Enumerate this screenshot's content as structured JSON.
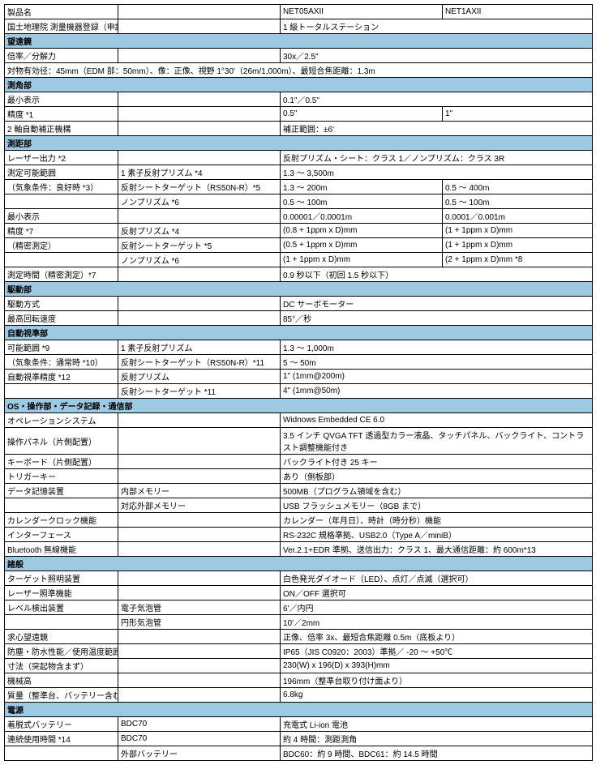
{
  "colors": {
    "header_bg": "#9ec9e2",
    "border": "#000000",
    "text": "#000000",
    "bg": "#ffffff"
  },
  "font_size": 10,
  "rows": [
    {
      "type": "r",
      "cells": [
        "製品名",
        "",
        "NET05AXII",
        "NET1AXII"
      ]
    },
    {
      "type": "r",
      "cells": [
        "国土地理院 測量機器登録（申請予定）",
        "",
        "1 級トータルステーション",
        ""
      ],
      "span": [
        1,
        1,
        2,
        0
      ]
    },
    {
      "type": "h",
      "label": "望遠鏡"
    },
    {
      "type": "r",
      "cells": [
        "倍率／分解力",
        "",
        "30x／2.5\"",
        ""
      ],
      "span": [
        1,
        1,
        2,
        0
      ]
    },
    {
      "type": "r",
      "cells": [
        "対物有効径：45mm（EDM 部：50mm）、像：正像、視野 1°30'（26m/1,000m）、最短合焦距離：1.3m",
        "",
        "",
        ""
      ],
      "span": [
        4,
        0,
        0,
        0
      ]
    },
    {
      "type": "h",
      "label": "測角部"
    },
    {
      "type": "r",
      "cells": [
        "最小表示",
        "",
        "0.1\"／0.5\"",
        ""
      ],
      "span": [
        1,
        1,
        2,
        0
      ]
    },
    {
      "type": "r",
      "cells": [
        "精度 *1",
        "",
        "0.5\"",
        "1\""
      ]
    },
    {
      "type": "r",
      "cells": [
        "2 軸自動補正機構",
        "",
        "補正範囲：±6'",
        ""
      ],
      "span": [
        1,
        1,
        2,
        0
      ]
    },
    {
      "type": "h",
      "label": "測距部"
    },
    {
      "type": "r",
      "cells": [
        "レーザー出力 *2",
        "",
        "反射プリズム・シート：クラス 1／ノンプリズム：クラス 3R",
        ""
      ],
      "span": [
        1,
        1,
        2,
        0
      ]
    },
    {
      "type": "r",
      "cells": [
        "測定可能範囲",
        "1 素子反射プリズム *4",
        "1.3 ～ 3,500m",
        ""
      ],
      "span": [
        1,
        1,
        2,
        0
      ]
    },
    {
      "type": "r",
      "cells": [
        "（気象条件：良好時 *3）",
        "反射シートターゲット（RS50N-R）*5",
        "1.3 ～ 200m",
        "0.5 ～ 400m"
      ]
    },
    {
      "type": "r",
      "cells": [
        "",
        "ノンプリズム *6",
        "0.5 ～ 100m",
        "0.5 ～ 100m"
      ]
    },
    {
      "type": "r",
      "cells": [
        "最小表示",
        "",
        "0.00001／0.0001m",
        "0.0001／0.001m"
      ]
    },
    {
      "type": "r",
      "cells": [
        "精度 *7",
        "反射プリズム *4",
        "(0.8 + 1ppm x D)mm",
        "(1 + 1ppm x D)mm"
      ]
    },
    {
      "type": "r",
      "cells": [
        "（精密測定）",
        "反射シートターゲット *5",
        "(0.5 + 1ppm x D)mm",
        "(1 + 1ppm x D)mm"
      ]
    },
    {
      "type": "r",
      "cells": [
        "",
        "ノンプリズム *6",
        "(1 + 1ppm x D)mm",
        "(2 + 1ppm x D)mm *8"
      ]
    },
    {
      "type": "r",
      "cells": [
        "測定時間（精密測定）*7",
        "",
        "0.9 秒以下（初回 1.5 秒以下）",
        ""
      ],
      "span": [
        1,
        1,
        2,
        0
      ]
    },
    {
      "type": "h",
      "label": "駆動部"
    },
    {
      "type": "r",
      "cells": [
        "駆動方式",
        "",
        "DC サーボモーター",
        ""
      ],
      "span": [
        1,
        1,
        2,
        0
      ]
    },
    {
      "type": "r",
      "cells": [
        "最高回転速度",
        "",
        "85°／秒",
        ""
      ],
      "span": [
        1,
        1,
        2,
        0
      ]
    },
    {
      "type": "h",
      "label": "自動視準部"
    },
    {
      "type": "r",
      "cells": [
        "可能範囲 *9",
        "1 素子反射プリズム",
        "1.3 ～ 1,000m",
        ""
      ],
      "span": [
        1,
        1,
        2,
        0
      ]
    },
    {
      "type": "r",
      "cells": [
        "（気象条件：通常時 *10）",
        "反射シートターゲット（RS50N-R）*11",
        "5 ～ 50m",
        ""
      ],
      "span": [
        1,
        1,
        2,
        0
      ]
    },
    {
      "type": "r",
      "cells": [
        "自動視準精度 *12",
        "反射プリズム",
        "1\" (1mm@200m)",
        ""
      ],
      "span": [
        1,
        1,
        2,
        0
      ]
    },
    {
      "type": "r",
      "cells": [
        "",
        "反射シートターゲット *11",
        "4\" (1mm@50m)",
        ""
      ],
      "span": [
        1,
        1,
        2,
        0
      ]
    },
    {
      "type": "h",
      "label": "OS・操作部・データ記録・通信部"
    },
    {
      "type": "r",
      "cells": [
        "オペレーションシステム",
        "",
        "Widnows Embedded CE 6.0",
        ""
      ],
      "span": [
        1,
        1,
        2,
        0
      ]
    },
    {
      "type": "r",
      "cells": [
        "操作パネル（片側配置）",
        "",
        "3.5 インチ QVGA TFT 透過型カラー液晶、タッチパネル、バックライト、コントラスト調整機能付き",
        ""
      ],
      "span": [
        1,
        1,
        2,
        0
      ],
      "tall": true
    },
    {
      "type": "r",
      "cells": [
        "キーボード（片側配置）",
        "",
        "バックライト付き 25 キー",
        ""
      ],
      "span": [
        1,
        1,
        2,
        0
      ]
    },
    {
      "type": "r",
      "cells": [
        "トリガーキー",
        "",
        "あり（側板部）",
        ""
      ],
      "span": [
        1,
        1,
        2,
        0
      ]
    },
    {
      "type": "r",
      "cells": [
        "データ記憶装置",
        "内部メモリー",
        "500MB（プログラム領域を含む）",
        ""
      ],
      "span": [
        1,
        1,
        2,
        0
      ]
    },
    {
      "type": "r",
      "cells": [
        "",
        "対応外部メモリー",
        "USB フラッシュメモリー（8GB まで）",
        ""
      ],
      "span": [
        1,
        1,
        2,
        0
      ]
    },
    {
      "type": "r",
      "cells": [
        "カレンダークロック機能",
        "",
        "カレンダー（年月日）、時計（時分秒）機能",
        ""
      ],
      "span": [
        1,
        1,
        2,
        0
      ]
    },
    {
      "type": "r",
      "cells": [
        "インターフェース",
        "",
        "RS-232C 規格準拠、USB2.0（Type A／miniB）",
        ""
      ],
      "span": [
        1,
        1,
        2,
        0
      ]
    },
    {
      "type": "r",
      "cells": [
        "Bluetooth 無線機能",
        "",
        "Ver.2.1+EDR 準拠、送信出力：クラス 1、最大通信距離：約 600m*13",
        ""
      ],
      "span": [
        1,
        1,
        2,
        0
      ]
    },
    {
      "type": "h",
      "label": "諸般"
    },
    {
      "type": "r",
      "cells": [
        "ターゲット照明装置",
        "",
        "白色発光ダイオード（LED）、点灯／点滅（選択可）",
        ""
      ],
      "span": [
        1,
        1,
        2,
        0
      ]
    },
    {
      "type": "r",
      "cells": [
        "レーザー照準機能",
        "",
        "ON／OFF 選択可",
        ""
      ],
      "span": [
        1,
        1,
        2,
        0
      ]
    },
    {
      "type": "r",
      "cells": [
        "レベル検出装置",
        "電子気泡管",
        "6'／内円",
        ""
      ],
      "span": [
        1,
        1,
        2,
        0
      ]
    },
    {
      "type": "r",
      "cells": [
        "",
        "円形気泡管",
        "10'／2mm",
        ""
      ],
      "span": [
        1,
        1,
        2,
        0
      ]
    },
    {
      "type": "r",
      "cells": [
        "求心望遠鏡",
        "",
        "正像、倍率 3x、最短合焦距離 0.5m（底板より）",
        ""
      ],
      "span": [
        1,
        1,
        2,
        0
      ]
    },
    {
      "type": "r",
      "cells": [
        "防塵・防水性能／使用温度範囲",
        "",
        "IP65（JIS C0920：2003）準拠／ -20 ～ +50℃",
        ""
      ],
      "span": [
        1,
        1,
        2,
        0
      ]
    },
    {
      "type": "r",
      "cells": [
        "寸法（突起物含まず）",
        "",
        "230(W) x 196(D) x 393(H)mm",
        ""
      ],
      "span": [
        1,
        1,
        2,
        0
      ]
    },
    {
      "type": "r",
      "cells": [
        "機械高",
        "",
        "196mm（整準台取り付け面より）",
        ""
      ],
      "span": [
        1,
        1,
        2,
        0
      ]
    },
    {
      "type": "r",
      "cells": [
        "質量（整準台、バッテリー含む）",
        "",
        "6.8kg",
        ""
      ],
      "span": [
        1,
        1,
        2,
        0
      ]
    },
    {
      "type": "h",
      "label": "電源"
    },
    {
      "type": "r",
      "cells": [
        "着脱式バッテリー",
        "BDC70",
        "充電式 Li-ion 電池",
        ""
      ],
      "span": [
        1,
        1,
        2,
        0
      ]
    },
    {
      "type": "r",
      "cells": [
        "連続使用時間 *14",
        "BDC70",
        "約 4 時間：測距測角",
        ""
      ],
      "span": [
        1,
        1,
        2,
        0
      ]
    },
    {
      "type": "r",
      "cells": [
        "",
        "外部バッテリー",
        "BDC60：約 9 時間、BDC61：約 14.5 時間",
        ""
      ],
      "span": [
        1,
        1,
        2,
        0
      ]
    }
  ]
}
